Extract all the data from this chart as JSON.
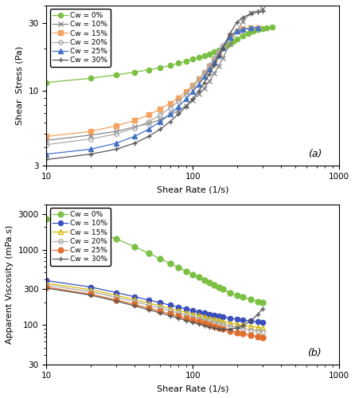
{
  "panel_a": {
    "ylabel": "Shear  Stress (Pa)",
    "xlabel": "Shear Rate (1/s)",
    "label": "(a)",
    "xlim": [
      10,
      1000
    ],
    "ylim": [
      3,
      40
    ],
    "yticks": [
      3,
      10,
      30
    ],
    "ytick_labels": [
      "3",
      "10",
      "30"
    ],
    "xticks": [
      10,
      100,
      1000
    ],
    "xtick_labels": [
      "10",
      "100",
      "1000"
    ],
    "series": [
      {
        "label": "Cw = 0%",
        "color": "#7bc043",
        "marker": "o",
        "markerface": "#7bc043",
        "linestyle": "-",
        "markersize": 4.5,
        "x": [
          10,
          20,
          30,
          40,
          50,
          60,
          70,
          80,
          90,
          100,
          110,
          120,
          130,
          140,
          150,
          160,
          170,
          180,
          190,
          200,
          220,
          240,
          260,
          280,
          300,
          320,
          350
        ],
        "y": [
          11.5,
          12.3,
          13.0,
          13.6,
          14.1,
          14.6,
          15.1,
          15.7,
          16.2,
          16.8,
          17.3,
          17.8,
          18.3,
          18.9,
          19.5,
          20.2,
          20.9,
          21.6,
          22.4,
          23.2,
          24.6,
          25.6,
          26.4,
          27.0,
          27.5,
          27.9,
          28.3
        ]
      },
      {
        "label": "Cw = 10%",
        "color": "#888888",
        "marker": "x",
        "markerface": "#888888",
        "linestyle": "-",
        "markersize": 5,
        "x": [
          10,
          20,
          30,
          40,
          50,
          60,
          70,
          80,
          90,
          100,
          110,
          120,
          130,
          140,
          150,
          160,
          180,
          200,
          220,
          250,
          300
        ],
        "y": [
          4.5,
          4.9,
          5.2,
          5.6,
          5.9,
          6.3,
          6.8,
          7.3,
          7.9,
          8.6,
          9.5,
          10.5,
          11.8,
          13.3,
          15.0,
          17.0,
          21.5,
          26.5,
          31.0,
          35.5,
          38.0
        ]
      },
      {
        "label": "Cw = 15%",
        "color": "#f4a460",
        "marker": "s",
        "markerface": "#f4a460",
        "linestyle": "-",
        "markersize": 4.5,
        "x": [
          10,
          20,
          30,
          40,
          50,
          60,
          70,
          80,
          90,
          100,
          110,
          120,
          130,
          140,
          150,
          160,
          180,
          200,
          220,
          250,
          280
        ],
        "y": [
          4.8,
          5.2,
          5.7,
          6.2,
          6.8,
          7.5,
          8.2,
          9.0,
          9.9,
          11.0,
          12.2,
          13.5,
          15.0,
          16.7,
          18.5,
          20.5,
          24.5,
          26.5,
          27.5,
          27.8,
          28.0
        ]
      },
      {
        "label": "Cw = 20%",
        "color": "#aaaaaa",
        "marker": "o",
        "markerface": "none",
        "linestyle": "-",
        "markersize": 4,
        "x": [
          10,
          20,
          30,
          40,
          50,
          60,
          70,
          80,
          90,
          100,
          110,
          120,
          130,
          140,
          150,
          160,
          180,
          200,
          220,
          250,
          280
        ],
        "y": [
          4.2,
          4.6,
          5.0,
          5.5,
          6.1,
          6.8,
          7.6,
          8.5,
          9.5,
          10.7,
          12.0,
          13.5,
          15.2,
          17.0,
          19.0,
          21.0,
          24.5,
          26.5,
          27.3,
          27.7,
          28.0
        ]
      },
      {
        "label": "Cw = 25%",
        "color": "#4472c4",
        "marker": "^",
        "markerface": "#4472c4",
        "linestyle": "-",
        "markersize": 4.5,
        "x": [
          10,
          20,
          30,
          40,
          50,
          60,
          70,
          80,
          90,
          100,
          110,
          120,
          130,
          140,
          150,
          160,
          180,
          200,
          220,
          250,
          280
        ],
        "y": [
          3.6,
          3.9,
          4.3,
          4.8,
          5.4,
          6.1,
          6.9,
          7.8,
          8.8,
          9.9,
          11.2,
          12.7,
          14.3,
          16.0,
          18.0,
          20.2,
          24.0,
          26.5,
          27.2,
          27.7,
          28.0
        ]
      },
      {
        "label": "Cw = 30%",
        "color": "#555555",
        "marker": "+",
        "markerface": "#555555",
        "linestyle": "-",
        "markersize": 5,
        "x": [
          10,
          20,
          30,
          40,
          50,
          60,
          70,
          80,
          90,
          100,
          110,
          120,
          130,
          140,
          150,
          160,
          180,
          200,
          220,
          250,
          280,
          300
        ],
        "y": [
          3.3,
          3.6,
          3.9,
          4.3,
          4.8,
          5.4,
          6.1,
          6.9,
          7.8,
          8.8,
          10.0,
          11.5,
          13.2,
          15.2,
          17.4,
          20.0,
          25.5,
          30.5,
          33.0,
          35.0,
          36.0,
          36.5
        ]
      }
    ]
  },
  "panel_b": {
    "ylabel": "Apparent Viscosity (mPa.s)",
    "xlabel": "Shear Rate (1/s)",
    "label": "(b)",
    "xlim": [
      10,
      1000
    ],
    "ylim": [
      30,
      4000
    ],
    "yticks": [
      30,
      100,
      300,
      1000,
      3000
    ],
    "ytick_labels": [
      "30",
      "100",
      "300",
      "1000",
      "3000"
    ],
    "xticks": [
      10,
      100,
      1000
    ],
    "xtick_labels": [
      "10",
      "100",
      "1000"
    ],
    "series": [
      {
        "label": "Cw = 0%",
        "color": "#7bc043",
        "marker": "o",
        "markerface": "#7bc043",
        "linestyle": "-",
        "markersize": 5,
        "x": [
          10,
          20,
          30,
          40,
          50,
          60,
          70,
          80,
          90,
          100,
          110,
          120,
          130,
          140,
          150,
          160,
          180,
          200,
          220,
          250,
          280,
          300
        ],
        "y": [
          2600,
          1800,
          1400,
          1100,
          900,
          760,
          660,
          580,
          520,
          470,
          430,
          395,
          365,
          340,
          318,
          300,
          270,
          250,
          235,
          218,
          206,
          200
        ]
      },
      {
        "label": "Cw = 10%",
        "color": "#3b4fbc",
        "marker": "o",
        "markerface": "#3b4fbc",
        "linestyle": "-",
        "markersize": 4.5,
        "x": [
          10,
          20,
          30,
          40,
          50,
          60,
          70,
          80,
          90,
          100,
          110,
          120,
          130,
          140,
          150,
          160,
          180,
          200,
          220,
          250,
          280,
          300
        ],
        "y": [
          390,
          320,
          270,
          238,
          215,
          198,
          184,
          173,
          164,
          156,
          150,
          145,
          140,
          136,
          132,
          129,
          124,
          120,
          117,
          113,
          110,
          108
        ]
      },
      {
        "label": "Cw = 15%",
        "color": "#d4b800",
        "marker": "^",
        "markerface": "none",
        "linestyle": "-",
        "markersize": 4.5,
        "x": [
          10,
          20,
          30,
          40,
          50,
          60,
          70,
          80,
          90,
          100,
          110,
          120,
          130,
          140,
          150,
          160,
          180,
          200,
          220,
          250,
          280,
          300
        ],
        "y": [
          360,
          295,
          248,
          218,
          196,
          180,
          166,
          156,
          147,
          140,
          134,
          128,
          124,
          119,
          116,
          112,
          107,
          103,
          100,
          96,
          93,
          91
        ]
      },
      {
        "label": "Cw = 20%",
        "color": "#aaaaaa",
        "marker": "o",
        "markerface": "none",
        "linestyle": "-",
        "markersize": 4,
        "x": [
          10,
          20,
          30,
          40,
          50,
          60,
          70,
          80,
          90,
          100,
          110,
          120,
          130,
          140,
          150,
          160,
          180,
          200,
          220,
          250,
          280,
          300
        ],
        "y": [
          340,
          278,
          234,
          205,
          184,
          168,
          155,
          145,
          136,
          129,
          123,
          118,
          113,
          109,
          105,
          102,
          97,
          93,
          90,
          86,
          83,
          81
        ]
      },
      {
        "label": "Cw = 25%",
        "color": "#e07030",
        "marker": "o",
        "markerface": "#e07030",
        "linestyle": "-",
        "markersize": 5,
        "x": [
          10,
          20,
          30,
          40,
          50,
          60,
          70,
          80,
          90,
          100,
          110,
          120,
          130,
          140,
          150,
          160,
          180,
          200,
          220,
          250,
          280,
          300
        ],
        "y": [
          320,
          258,
          216,
          188,
          168,
          153,
          141,
          131,
          123,
          116,
          110,
          105,
          100,
          96,
          92,
          89,
          84,
          80,
          77,
          73,
          70,
          68
        ]
      },
      {
        "label": "Cw = 30%",
        "color": "#555555",
        "marker": "+",
        "markerface": "#555555",
        "linestyle": "-",
        "markersize": 5,
        "x": [
          10,
          20,
          30,
          40,
          50,
          60,
          70,
          80,
          90,
          100,
          110,
          120,
          130,
          140,
          150,
          160,
          180,
          200,
          220,
          250,
          280,
          300
        ],
        "y": [
          310,
          250,
          208,
          180,
          160,
          145,
          133,
          123,
          115,
          108,
          103,
          98,
          94,
          91,
          89,
          88,
          88,
          92,
          98,
          115,
          140,
          165
        ]
      }
    ]
  }
}
